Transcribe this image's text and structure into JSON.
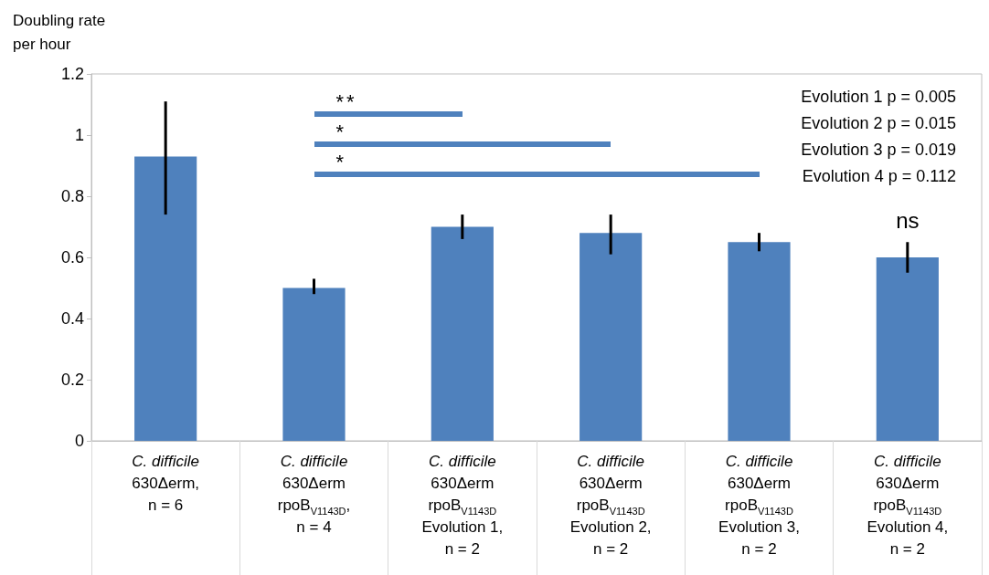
{
  "chart_data": {
    "type": "bar",
    "ylabel": "Doubling rate\nper hour",
    "categories": [
      "C. difficile\n630Δerm,\nn = 6",
      "C. difficile\n630Δerm\nrpoB$_{V1143D}$,\nn = 4",
      "C. difficile\n630Δerm\nrpoB$_{V1143D}$\nEvolution 1,\nn = 2",
      "C. difficile\n630Δerm\nrpoB$_{V1143D}$\nEvolution 2,\nn = 2",
      "C. difficile\n630Δerm\nrpoB$_{V1143D}$\nEvolution 3,\nn = 2",
      "C. difficile\n630Δerm\nrpoB$_{V1143D}$\nEvolution 4,\nn = 2"
    ],
    "values": [
      0.93,
      0.5,
      0.7,
      0.68,
      0.65,
      0.6
    ],
    "errors": [
      [
        0.74,
        1.11
      ],
      [
        0.48,
        0.53
      ],
      [
        0.66,
        0.74
      ],
      [
        0.61,
        0.74
      ],
      [
        0.62,
        0.68
      ],
      [
        0.55,
        0.65
      ]
    ],
    "color": "#4f81bd",
    "ylim": [
      0,
      1.2
    ],
    "yticks": [
      0,
      0.2,
      0.4,
      0.6,
      0.8,
      1,
      1.2
    ],
    "grid": false,
    "annotations": [
      "**",
      "*",
      "*",
      "ns",
      "Evolution 1 p = 0.005",
      "Evolution 2 p = 0.015",
      "Evolution 3 p = 0.019",
      "Evolution 4 p = 0.112"
    ]
  }
}
